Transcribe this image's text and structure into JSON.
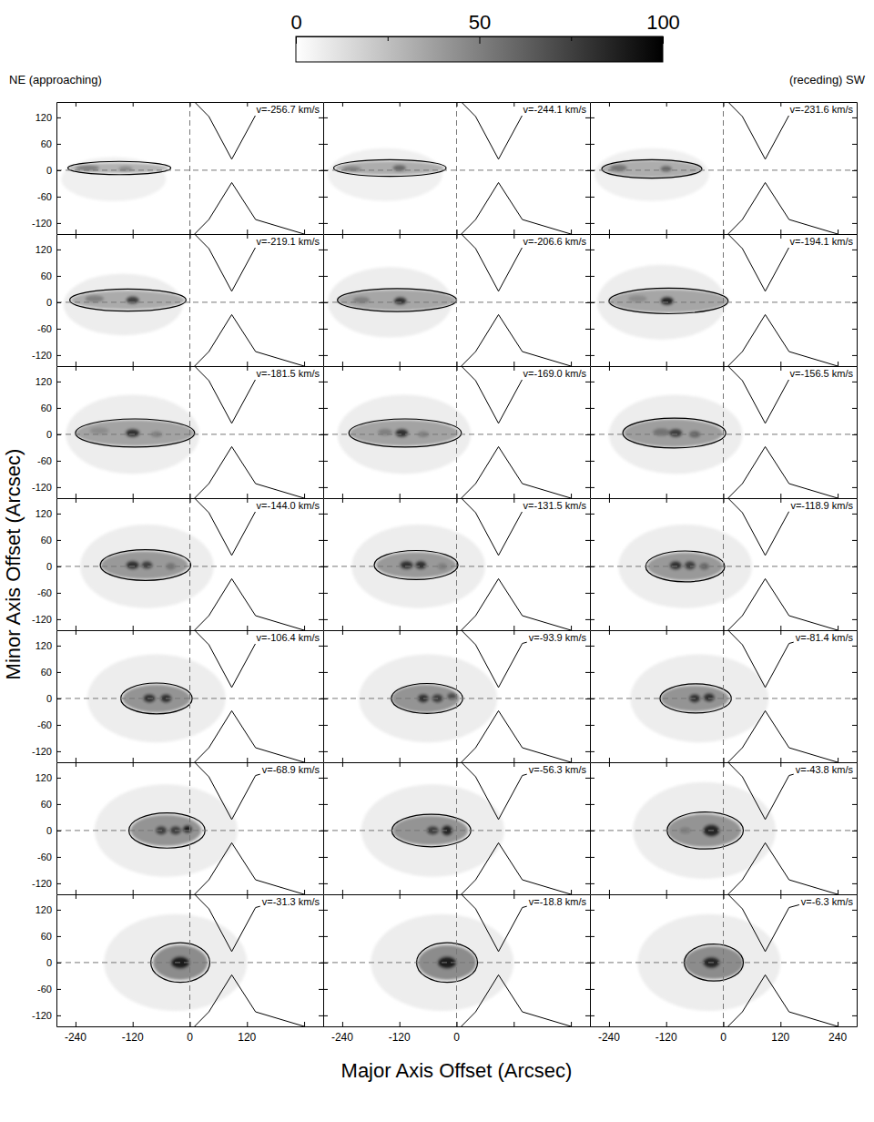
{
  "chart_data": {
    "type": "channel_map",
    "x_label": "Major Axis Offset (Arcsec)",
    "y_label": "Minor Axis Offset (Arcsec)",
    "left_annotation": "NE (approaching)",
    "right_annotation": "(receding) SW",
    "xlim": [
      -280,
      280
    ],
    "ylim": [
      -145,
      155
    ],
    "xticks": [
      -240,
      -120,
      0,
      120,
      240
    ],
    "xtick_labels_by_column": [
      [
        -240,
        -120,
        0,
        120
      ],
      [
        -240,
        -120,
        0
      ],
      [
        -240,
        -120,
        0,
        120,
        240
      ]
    ],
    "yticks": [
      -120,
      -60,
      0,
      60,
      120
    ],
    "reference_lines": {
      "x": 0,
      "y": 0
    },
    "footprint": {
      "upper": [
        [
          10,
          155
        ],
        [
          40,
          122
        ],
        [
          88,
          25
        ],
        [
          138,
          125
        ],
        [
          240,
          155
        ]
      ],
      "lower": [
        [
          10,
          -145
        ],
        [
          40,
          -112
        ],
        [
          88,
          -28
        ],
        [
          138,
          -112
        ],
        [
          240,
          -145
        ]
      ]
    },
    "colorbar": {
      "range": [
        0,
        100
      ],
      "ticks": [
        0,
        50,
        100
      ],
      "minor_ticks": [
        25,
        75
      ]
    },
    "panels": [
      {
        "label": "v=-256.7 km/s",
        "emission": [
          {
            "x": -160,
            "y": -20,
            "rx": 110,
            "ry": 50,
            "value": 6
          },
          {
            "x": -150,
            "y": 5,
            "rx": 105,
            "ry": 12,
            "value": 30
          },
          {
            "x": -215,
            "y": 5,
            "rx": 25,
            "ry": 7,
            "value": 50
          },
          {
            "x": -135,
            "y": 3,
            "rx": 15,
            "ry": 6,
            "value": 45
          }
        ],
        "contour": [
          {
            "x": -148,
            "y": 5,
            "rx": 108,
            "ry": 15
          }
        ]
      },
      {
        "label": "v=-244.1 km/s",
        "emission": [
          {
            "x": -150,
            "y": -10,
            "rx": 120,
            "ry": 60,
            "value": 6
          },
          {
            "x": -140,
            "y": 5,
            "rx": 115,
            "ry": 16,
            "value": 32
          },
          {
            "x": -220,
            "y": 3,
            "rx": 20,
            "ry": 6,
            "value": 50
          },
          {
            "x": -120,
            "y": 5,
            "rx": 14,
            "ry": 7,
            "value": 60
          }
        ],
        "contour": [
          {
            "x": -140,
            "y": 5,
            "rx": 118,
            "ry": 19
          }
        ]
      },
      {
        "label": "v=-231.6 km/s",
        "emission": [
          {
            "x": -150,
            "y": -10,
            "rx": 120,
            "ry": 60,
            "value": 6
          },
          {
            "x": -150,
            "y": 3,
            "rx": 105,
            "ry": 20,
            "value": 32
          },
          {
            "x": -220,
            "y": 5,
            "rx": 18,
            "ry": 8,
            "value": 55
          },
          {
            "x": -120,
            "y": 3,
            "rx": 12,
            "ry": 7,
            "value": 60
          }
        ],
        "contour": [
          {
            "x": -150,
            "y": 3,
            "rx": 105,
            "ry": 21
          }
        ]
      },
      {
        "label": "v=-219.1 km/s",
        "emission": [
          {
            "x": -140,
            "y": -5,
            "rx": 125,
            "ry": 70,
            "value": 7
          },
          {
            "x": -130,
            "y": 5,
            "rx": 120,
            "ry": 22,
            "value": 33
          },
          {
            "x": -200,
            "y": 8,
            "rx": 20,
            "ry": 8,
            "value": 50
          },
          {
            "x": -120,
            "y": 5,
            "rx": 14,
            "ry": 9,
            "value": 75
          }
        ],
        "contour": [
          {
            "x": -130,
            "y": 5,
            "rx": 122,
            "ry": 25
          }
        ]
      },
      {
        "label": "v=-206.6 km/s",
        "emission": [
          {
            "x": -140,
            "y": 0,
            "rx": 130,
            "ry": 80,
            "value": 7
          },
          {
            "x": -125,
            "y": 5,
            "rx": 125,
            "ry": 24,
            "value": 35
          },
          {
            "x": -200,
            "y": 5,
            "rx": 18,
            "ry": 8,
            "value": 50
          },
          {
            "x": -118,
            "y": 3,
            "rx": 14,
            "ry": 9,
            "value": 80
          }
        ],
        "contour": [
          {
            "x": -125,
            "y": 5,
            "rx": 125,
            "ry": 26
          }
        ]
      },
      {
        "label": "v=-194.1 km/s",
        "emission": [
          {
            "x": -130,
            "y": 0,
            "rx": 135,
            "ry": 85,
            "value": 7
          },
          {
            "x": -115,
            "y": 3,
            "rx": 125,
            "ry": 27,
            "value": 35
          },
          {
            "x": -180,
            "y": 8,
            "rx": 20,
            "ry": 8,
            "value": 45
          },
          {
            "x": -118,
            "y": 3,
            "rx": 14,
            "ry": 10,
            "value": 85
          }
        ],
        "contour": [
          {
            "x": -115,
            "y": 3,
            "rx": 125,
            "ry": 29
          }
        ]
      },
      {
        "label": "v=-181.5 km/s",
        "emission": [
          {
            "x": -120,
            "y": 0,
            "rx": 140,
            "ry": 90,
            "value": 7
          },
          {
            "x": -115,
            "y": 3,
            "rx": 125,
            "ry": 30,
            "value": 36
          },
          {
            "x": -190,
            "y": 8,
            "rx": 20,
            "ry": 8,
            "value": 45
          },
          {
            "x": -70,
            "y": 0,
            "rx": 12,
            "ry": 7,
            "value": 50
          },
          {
            "x": -120,
            "y": 3,
            "rx": 15,
            "ry": 10,
            "value": 80
          }
        ],
        "contour": [
          {
            "x": -115,
            "y": 3,
            "rx": 125,
            "ry": 32
          }
        ]
      },
      {
        "label": "v=-169.0 km/s",
        "emission": [
          {
            "x": -110,
            "y": 0,
            "rx": 140,
            "ry": 90,
            "value": 7
          },
          {
            "x": -110,
            "y": 3,
            "rx": 115,
            "ry": 30,
            "value": 36
          },
          {
            "x": -150,
            "y": 5,
            "rx": 15,
            "ry": 8,
            "value": 50
          },
          {
            "x": -70,
            "y": 0,
            "rx": 12,
            "ry": 7,
            "value": 50
          },
          {
            "x": -115,
            "y": 3,
            "rx": 14,
            "ry": 10,
            "value": 80
          }
        ],
        "contour": [
          {
            "x": -108,
            "y": 3,
            "rx": 118,
            "ry": 32
          }
        ]
      },
      {
        "label": "v=-156.5 km/s",
        "emission": [
          {
            "x": -100,
            "y": 0,
            "rx": 140,
            "ry": 90,
            "value": 7
          },
          {
            "x": -105,
            "y": 3,
            "rx": 105,
            "ry": 32,
            "value": 38
          },
          {
            "x": -130,
            "y": 5,
            "rx": 18,
            "ry": 9,
            "value": 55
          },
          {
            "x": -60,
            "y": 0,
            "rx": 12,
            "ry": 8,
            "value": 60
          },
          {
            "x": -100,
            "y": 3,
            "rx": 14,
            "ry": 10,
            "value": 75
          }
        ],
        "contour": [
          {
            "x": -103,
            "y": 3,
            "rx": 108,
            "ry": 34
          }
        ]
      },
      {
        "label": "v=-144.0 km/s",
        "emission": [
          {
            "x": -90,
            "y": 0,
            "rx": 140,
            "ry": 95,
            "value": 7
          },
          {
            "x": -95,
            "y": 3,
            "rx": 92,
            "ry": 32,
            "value": 40
          },
          {
            "x": -40,
            "y": 0,
            "rx": 10,
            "ry": 8,
            "value": 55
          },
          {
            "x": -90,
            "y": 3,
            "rx": 12,
            "ry": 9,
            "value": 75
          },
          {
            "x": -120,
            "y": 3,
            "rx": 14,
            "ry": 10,
            "value": 80
          }
        ],
        "contour": [
          {
            "x": -93,
            "y": 3,
            "rx": 95,
            "ry": 35
          }
        ]
      },
      {
        "label": "v=-131.5 km/s",
        "emission": [
          {
            "x": -80,
            "y": 0,
            "rx": 140,
            "ry": 95,
            "value": 7
          },
          {
            "x": -85,
            "y": 3,
            "rx": 85,
            "ry": 30,
            "value": 40
          },
          {
            "x": -30,
            "y": 0,
            "rx": 10,
            "ry": 8,
            "value": 50
          },
          {
            "x": -105,
            "y": 3,
            "rx": 14,
            "ry": 10,
            "value": 80
          },
          {
            "x": -75,
            "y": 3,
            "rx": 12,
            "ry": 10,
            "value": 80
          }
        ],
        "contour": [
          {
            "x": -85,
            "y": 3,
            "rx": 88,
            "ry": 33
          }
        ]
      },
      {
        "label": "v=-118.9 km/s",
        "emission": [
          {
            "x": -80,
            "y": 0,
            "rx": 140,
            "ry": 95,
            "value": 7
          },
          {
            "x": -80,
            "y": 0,
            "rx": 80,
            "ry": 32,
            "value": 40
          },
          {
            "x": -40,
            "y": 0,
            "rx": 10,
            "ry": 8,
            "value": 60
          },
          {
            "x": -70,
            "y": 2,
            "rx": 12,
            "ry": 10,
            "value": 75
          },
          {
            "x": -100,
            "y": 2,
            "rx": 13,
            "ry": 10,
            "value": 80
          }
        ],
        "contour": [
          {
            "x": -80,
            "y": 0,
            "rx": 83,
            "ry": 35
          }
        ]
      },
      {
        "label": "v=-106.4 km/s",
        "emission": [
          {
            "x": -70,
            "y": 0,
            "rx": 145,
            "ry": 100,
            "value": 7
          },
          {
            "x": -70,
            "y": 0,
            "rx": 72,
            "ry": 32,
            "value": 42
          },
          {
            "x": -85,
            "y": 0,
            "rx": 13,
            "ry": 10,
            "value": 80
          },
          {
            "x": -50,
            "y": 0,
            "rx": 12,
            "ry": 10,
            "value": 80
          }
        ],
        "contour": [
          {
            "x": -70,
            "y": 0,
            "rx": 75,
            "ry": 35
          }
        ]
      },
      {
        "label": "v=-93.9 km/s",
        "emission": [
          {
            "x": -60,
            "y": 0,
            "rx": 145,
            "ry": 100,
            "value": 7
          },
          {
            "x": -65,
            "y": 0,
            "rx": 72,
            "ry": 32,
            "value": 42
          },
          {
            "x": -10,
            "y": 5,
            "rx": 10,
            "ry": 8,
            "value": 70
          },
          {
            "x": -40,
            "y": 0,
            "rx": 12,
            "ry": 10,
            "value": 75
          },
          {
            "x": -70,
            "y": 0,
            "rx": 12,
            "ry": 10,
            "value": 80
          }
        ],
        "contour": [
          {
            "x": -62,
            "y": 0,
            "rx": 75,
            "ry": 34
          }
        ]
      },
      {
        "label": "v=-81.4 km/s",
        "emission": [
          {
            "x": -50,
            "y": 0,
            "rx": 145,
            "ry": 100,
            "value": 7
          },
          {
            "x": -60,
            "y": 0,
            "rx": 72,
            "ry": 30,
            "value": 42
          },
          {
            "x": -60,
            "y": 0,
            "rx": 12,
            "ry": 10,
            "value": 80
          },
          {
            "x": -30,
            "y": 2,
            "rx": 12,
            "ry": 10,
            "value": 80
          }
        ],
        "contour": [
          {
            "x": -58,
            "y": 0,
            "rx": 75,
            "ry": 33
          }
        ]
      },
      {
        "label": "v=-68.9 km/s",
        "emission": [
          {
            "x": -50,
            "y": 0,
            "rx": 150,
            "ry": 105,
            "value": 7
          },
          {
            "x": -50,
            "y": 0,
            "rx": 75,
            "ry": 36,
            "value": 42
          },
          {
            "x": -60,
            "y": 0,
            "rx": 12,
            "ry": 10,
            "value": 75
          },
          {
            "x": -30,
            "y": 0,
            "rx": 12,
            "ry": 10,
            "value": 75
          },
          {
            "x": -5,
            "y": 3,
            "rx": 10,
            "ry": 9,
            "value": 90
          }
        ],
        "contour": [
          {
            "x": -48,
            "y": 0,
            "rx": 80,
            "ry": 40
          }
        ]
      },
      {
        "label": "v=-56.3 km/s",
        "emission": [
          {
            "x": -50,
            "y": 0,
            "rx": 150,
            "ry": 105,
            "value": 7
          },
          {
            "x": -55,
            "y": 0,
            "rx": 80,
            "ry": 34,
            "value": 42
          },
          {
            "x": -50,
            "y": 0,
            "rx": 13,
            "ry": 10,
            "value": 75
          },
          {
            "x": -20,
            "y": 0,
            "rx": 12,
            "ry": 12,
            "value": 85
          }
        ],
        "contour": [
          {
            "x": -53,
            "y": 0,
            "rx": 83,
            "ry": 37
          }
        ]
      },
      {
        "label": "v=-43.8 km/s",
        "emission": [
          {
            "x": -40,
            "y": 0,
            "rx": 150,
            "ry": 110,
            "value": 7
          },
          {
            "x": -40,
            "y": 0,
            "rx": 78,
            "ry": 38,
            "value": 42
          },
          {
            "x": -80,
            "y": 0,
            "rx": 12,
            "ry": 8,
            "value": 50
          },
          {
            "x": -25,
            "y": 0,
            "rx": 18,
            "ry": 14,
            "value": 85
          }
        ],
        "contour": [
          {
            "x": -38,
            "y": 0,
            "rx": 80,
            "ry": 42
          }
        ]
      },
      {
        "label": "v=-31.3 km/s",
        "emission": [
          {
            "x": -30,
            "y": 0,
            "rx": 150,
            "ry": 110,
            "value": 7
          },
          {
            "x": -20,
            "y": 0,
            "rx": 58,
            "ry": 40,
            "value": 45
          },
          {
            "x": -20,
            "y": 0,
            "rx": 20,
            "ry": 14,
            "value": 90
          }
        ],
        "contour": [
          {
            "x": -20,
            "y": 0,
            "rx": 62,
            "ry": 45
          }
        ]
      },
      {
        "label": "v=-18.8 km/s",
        "emission": [
          {
            "x": -30,
            "y": 0,
            "rx": 150,
            "ry": 110,
            "value": 7
          },
          {
            "x": -20,
            "y": 0,
            "rx": 62,
            "ry": 40,
            "value": 45
          },
          {
            "x": -20,
            "y": 0,
            "rx": 20,
            "ry": 14,
            "value": 90
          }
        ],
        "contour": [
          {
            "x": -20,
            "y": 0,
            "rx": 64,
            "ry": 45
          }
        ]
      },
      {
        "label": "v=-6.3 km/s",
        "emission": [
          {
            "x": -30,
            "y": 0,
            "rx": 150,
            "ry": 110,
            "value": 7
          },
          {
            "x": -20,
            "y": 0,
            "rx": 62,
            "ry": 38,
            "value": 45
          },
          {
            "x": -25,
            "y": 0,
            "rx": 18,
            "ry": 13,
            "value": 85
          }
        ],
        "contour": [
          {
            "x": -20,
            "y": 0,
            "rx": 62,
            "ry": 42
          }
        ]
      }
    ]
  }
}
